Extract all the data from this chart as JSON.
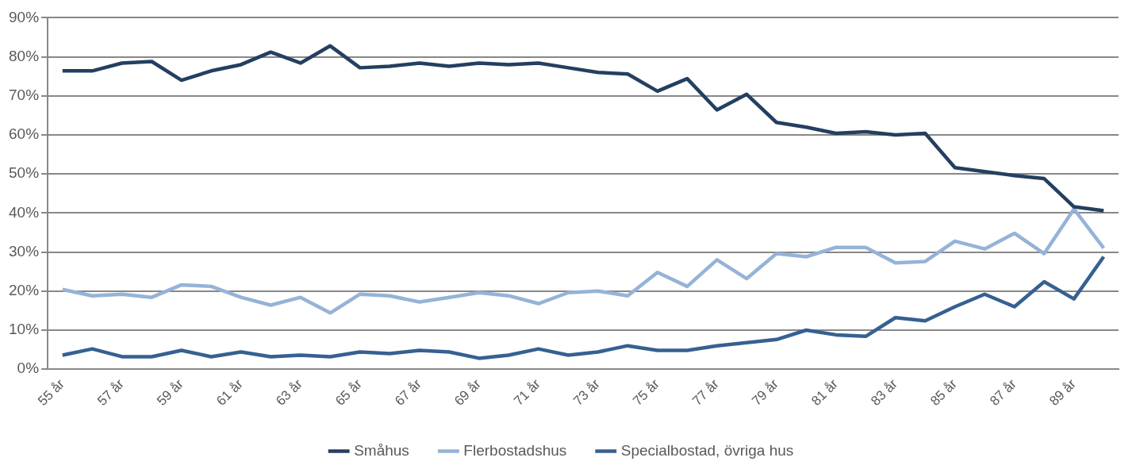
{
  "chart_data": {
    "type": "line",
    "categories": [
      "55 år",
      null,
      "57 år",
      null,
      "59 år",
      null,
      "61 år",
      null,
      "63 år",
      null,
      "65 år",
      null,
      "67 år",
      null,
      "69 år",
      null,
      "71 år",
      null,
      "73 år",
      null,
      "75 år",
      null,
      "77 år",
      null,
      "79 år",
      null,
      "81 år",
      null,
      "83 år",
      null,
      "85 år",
      null,
      "87 år",
      null,
      "89 år",
      null
    ],
    "series": [
      {
        "name": "Småhus",
        "color": "#243f60",
        "values": [
          76.4,
          76.4,
          78.4,
          78.8,
          74,
          76.4,
          78,
          81.2,
          78.4,
          82.8,
          77.2,
          77.6,
          78.4,
          77.6,
          78.4,
          78,
          78.4,
          77.2,
          76,
          75.6,
          71.2,
          74.4,
          66.4,
          70.4,
          63.2,
          62,
          60.4,
          60.8,
          60,
          60.4,
          51.6,
          50.6,
          49.6,
          48.8,
          41.6,
          40.6
        ]
      },
      {
        "name": "Flerbostadshus",
        "color": "#95b3d7",
        "values": [
          20.4,
          18.8,
          19.2,
          18.4,
          21.6,
          21.2,
          18.4,
          16.4,
          18.4,
          14.4,
          19.2,
          18.8,
          17.2,
          18.4,
          19.6,
          18.8,
          16.8,
          19.6,
          20,
          18.8,
          24.8,
          21.2,
          28,
          23.2,
          29.6,
          28.8,
          31.2,
          31.2,
          27.2,
          27.6,
          32.8,
          30.8,
          34.8,
          29.6,
          41,
          31
        ]
      },
      {
        "name": "Specialbostad, övriga hus",
        "color": "#366092",
        "values": [
          3.6,
          5.2,
          3.2,
          3.2,
          4.8,
          3.2,
          4.4,
          3.2,
          3.6,
          3.2,
          4.4,
          4,
          4.8,
          4.4,
          2.8,
          3.6,
          5.2,
          3.6,
          4.4,
          6,
          4.8,
          4.8,
          6,
          6.8,
          7.6,
          10,
          8.8,
          8.4,
          13.2,
          12.4,
          16,
          19.2,
          16,
          22.4,
          18,
          28.8
        ]
      }
    ],
    "ylim": [
      0,
      90
    ],
    "yticks": [
      {
        "value": 0,
        "label": "0%"
      },
      {
        "value": 10,
        "label": "10%"
      },
      {
        "value": 20,
        "label": "20%"
      },
      {
        "value": 30,
        "label": "30%"
      },
      {
        "value": 40,
        "label": "40%"
      },
      {
        "value": 50,
        "label": "50%"
      },
      {
        "value": 60,
        "label": "60%"
      },
      {
        "value": 70,
        "label": "70%"
      },
      {
        "value": 80,
        "label": "80%"
      },
      {
        "value": 90,
        "label": "90%"
      }
    ],
    "grid": "y",
    "legend": "bottom",
    "marker": "none",
    "line_style": "solid"
  }
}
